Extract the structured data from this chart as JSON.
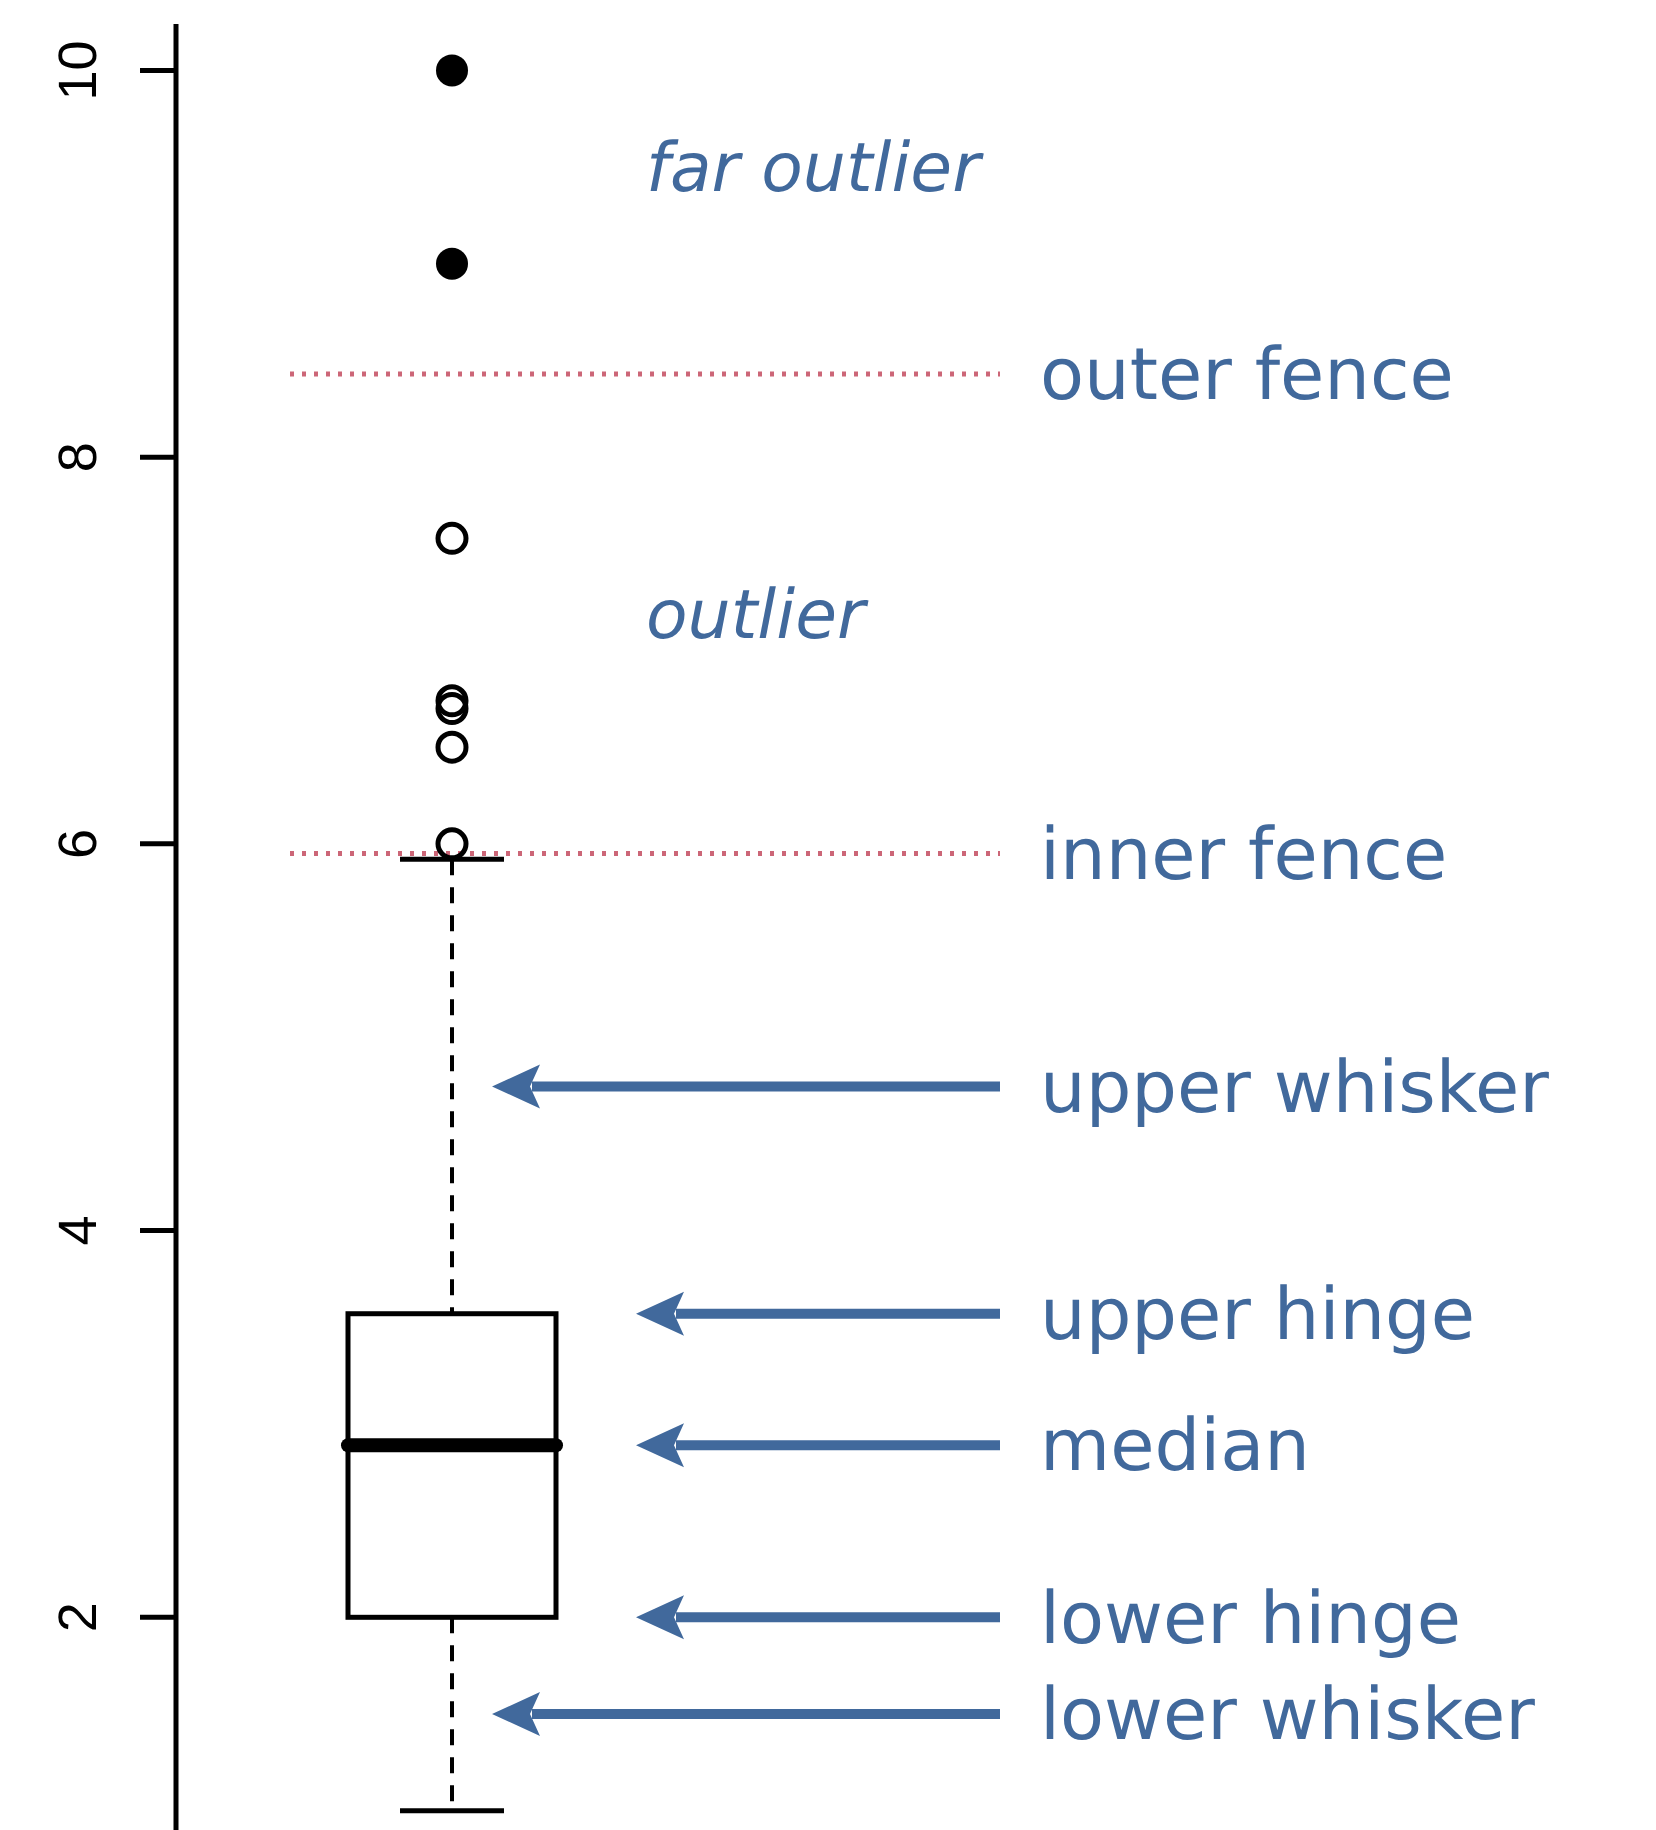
{
  "chart_data": {
    "type": "box",
    "categories": [
      null
    ],
    "ylim": [
      0.9,
      10.24
    ],
    "yticks": [
      2,
      4,
      6,
      8,
      10
    ],
    "tick_labels": "y",
    "series": [
      {
        "color": "#000000",
        "boxes": [
          {
            "low": 1.0,
            "q1": 2.0,
            "median": 2.89,
            "q3": 3.57,
            "high": 5.92,
            "outliers": [
              6.0,
              6.5,
              6.7,
              6.74,
              7.58,
              9.0,
              10.0
            ]
          }
        ]
      }
    ],
    "ref_lines": [
      {
        "axis": "y",
        "value": 8.43,
        "label": "outer fence",
        "color": "#cc6677",
        "line_style": "dotted"
      },
      {
        "axis": "y",
        "value": 5.95,
        "label": "inner fence",
        "color": "#cc6677",
        "line_style": "dotted"
      }
    ],
    "annotations": [
      "far outlier",
      "outlier",
      "upper whisker",
      "upper hinge",
      "median",
      "lower hinge",
      "lower whisker"
    ]
  }
}
